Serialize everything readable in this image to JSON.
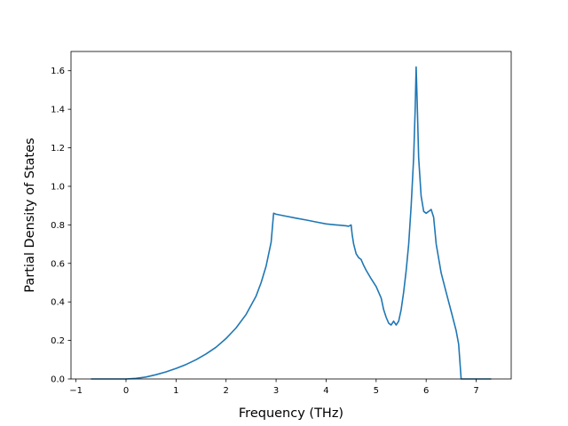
{
  "chart_data": {
    "type": "line",
    "title": "",
    "xlabel": "Frequency (THz)",
    "ylabel": "Partial Density of States",
    "xlim": [
      -1.1,
      7.7
    ],
    "ylim": [
      0.0,
      1.7
    ],
    "grid": false,
    "x_ticks": [
      -1,
      0,
      1,
      2,
      3,
      4,
      5,
      6,
      7
    ],
    "x_tick_labels": [
      "−1",
      "0",
      "1",
      "2",
      "3",
      "4",
      "5",
      "6",
      "7"
    ],
    "y_ticks": [
      0.0,
      0.2,
      0.4,
      0.6,
      0.8,
      1.0,
      1.2,
      1.4,
      1.6
    ],
    "y_tick_labels": [
      "0.0",
      "0.2",
      "0.4",
      "0.6",
      "0.8",
      "1.0",
      "1.2",
      "1.4",
      "1.6"
    ],
    "colors": {
      "line": "#1f77b4",
      "axes": "#000000",
      "background": "#ffffff"
    },
    "series": [
      {
        "x": [
          -0.7,
          0.0,
          0.2,
          0.4,
          0.6,
          0.8,
          1.0,
          1.2,
          1.4,
          1.6,
          1.8,
          2.0,
          2.2,
          2.4,
          2.6,
          2.7,
          2.8,
          2.9,
          2.95,
          3.0,
          3.2,
          3.4,
          3.6,
          3.8,
          4.0,
          4.2,
          4.4,
          4.45,
          4.5,
          4.52,
          4.55,
          4.6,
          4.65,
          4.7,
          4.75,
          4.8,
          4.9,
          5.0,
          5.1,
          5.15,
          5.2,
          5.25,
          5.3,
          5.35,
          5.4,
          5.45,
          5.5,
          5.55,
          5.6,
          5.65,
          5.7,
          5.75,
          5.78,
          5.8,
          5.82,
          5.85,
          5.9,
          5.95,
          6.0,
          6.05,
          6.1,
          6.15,
          6.2,
          6.3,
          6.4,
          6.5,
          6.6,
          6.65,
          6.7,
          6.8,
          7.0,
          7.3
        ],
        "y": [
          0.0,
          0.0,
          0.003,
          0.01,
          0.022,
          0.037,
          0.055,
          0.075,
          0.1,
          0.13,
          0.165,
          0.21,
          0.265,
          0.335,
          0.43,
          0.5,
          0.585,
          0.71,
          0.86,
          0.855,
          0.845,
          0.835,
          0.825,
          0.815,
          0.805,
          0.8,
          0.795,
          0.793,
          0.8,
          0.75,
          0.7,
          0.65,
          0.63,
          0.62,
          0.59,
          0.565,
          0.52,
          0.48,
          0.42,
          0.36,
          0.32,
          0.29,
          0.28,
          0.3,
          0.28,
          0.3,
          0.36,
          0.45,
          0.56,
          0.7,
          0.9,
          1.15,
          1.4,
          1.62,
          1.45,
          1.15,
          0.95,
          0.87,
          0.86,
          0.87,
          0.88,
          0.84,
          0.7,
          0.55,
          0.45,
          0.35,
          0.25,
          0.18,
          0.0,
          0.0,
          0.0,
          0.0
        ]
      }
    ]
  }
}
